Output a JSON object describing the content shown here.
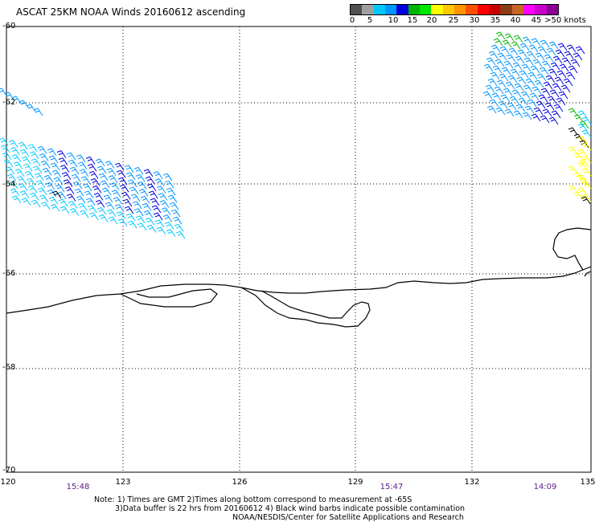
{
  "title": "ASCAT 25KM NOAA Winds 20160612 ascending",
  "legend": {
    "labels": [
      "0",
      "5",
      "10",
      "15",
      "20",
      "25",
      "30",
      "35",
      "40",
      "45",
      ">50 knots"
    ],
    "colors": [
      "#505050",
      "#a0a0a0",
      "#00c8ff",
      "#0096ff",
      "#0000dc",
      "#00b400",
      "#00e800",
      "#ffff00",
      "#ffc800",
      "#ff9600",
      "#ff5000",
      "#ff0000",
      "#c80000",
      "#8c3c14",
      "#c86428",
      "#ff00ff",
      "#c800c8",
      "#8c0096"
    ]
  },
  "map": {
    "lat_labels": [
      "-60",
      "-62",
      "-64",
      "-66",
      "-68",
      "-70"
    ],
    "lon_labels": [
      "120",
      "123",
      "126",
      "129",
      "132",
      "135"
    ],
    "time_labels": [
      "15:48",
      "15:47",
      "14:09"
    ],
    "barb_colors": {
      "low": "#00c8ff",
      "mid": "#0096ff",
      "high": "#0000dc",
      "green": "#00b400",
      "yellow": "#ffff00",
      "black": "#000000"
    }
  },
  "note": {
    "line1": "Note: 1) Times are GMT 2)Times along bottom correspond to measurement at -65S",
    "line2": "3)Data buffer is 22 hrs from 20160612 4) Black wind barbs indicate possible contamination",
    "line3": "NOAA/NESDIS/Center for Satellite Applications and Research"
  }
}
